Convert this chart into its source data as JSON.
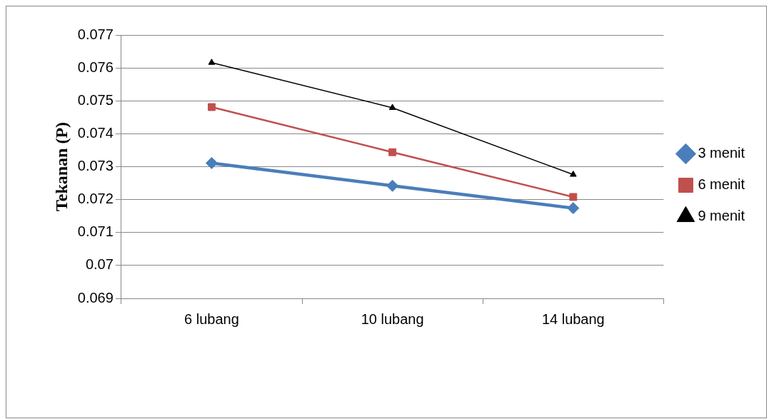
{
  "chart_data": {
    "type": "line",
    "ylabel": "Tekanan (P)",
    "categories": [
      "6 lubang",
      "10 lubang",
      "14 lubang"
    ],
    "series": [
      {
        "name": "3 menit",
        "color": "#4a7ebb",
        "marker": "diamond",
        "values": [
          0.07311,
          0.07242,
          0.07174
        ]
      },
      {
        "name": "6 menit",
        "color": "#c0504d",
        "marker": "square",
        "values": [
          0.07481,
          0.07344,
          0.07208
        ]
      },
      {
        "name": "9 menit",
        "color": "#000000",
        "marker": "triangle",
        "values": [
          0.07616,
          0.07479,
          0.07276
        ]
      }
    ],
    "ylim": [
      0.069,
      0.077
    ],
    "yticks": [
      0.069,
      0.07,
      0.071,
      0.072,
      0.073,
      0.074,
      0.075,
      0.076,
      0.077
    ],
    "grid": "y",
    "legend": "right"
  }
}
